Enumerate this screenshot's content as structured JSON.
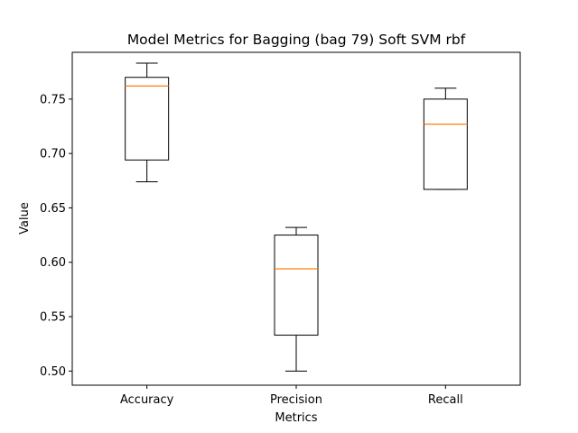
{
  "chart_data": {
    "type": "boxplot",
    "title": "Model Metrics for Bagging (bag 79) Soft SVM rbf",
    "xlabel": "Metrics",
    "ylabel": "Value",
    "ylim": [
      0.487,
      0.793
    ],
    "yticks": [
      "0.50",
      "0.55",
      "0.60",
      "0.65",
      "0.70",
      "0.75"
    ],
    "categories": [
      "Accuracy",
      "Precision",
      "Recall"
    ],
    "boxes": [
      {
        "whisker_low": 0.674,
        "q1": 0.694,
        "median": 0.762,
        "q3": 0.77,
        "whisker_high": 0.783
      },
      {
        "whisker_low": 0.5,
        "q1": 0.533,
        "median": 0.594,
        "q3": 0.625,
        "whisker_high": 0.632
      },
      {
        "whisker_low": 0.667,
        "q1": 0.667,
        "median": 0.727,
        "q3": 0.75,
        "whisker_high": 0.76
      }
    ],
    "colors": {
      "box": "#000000",
      "median": "#ff7f0e"
    },
    "grid": false,
    "legend": "none"
  }
}
